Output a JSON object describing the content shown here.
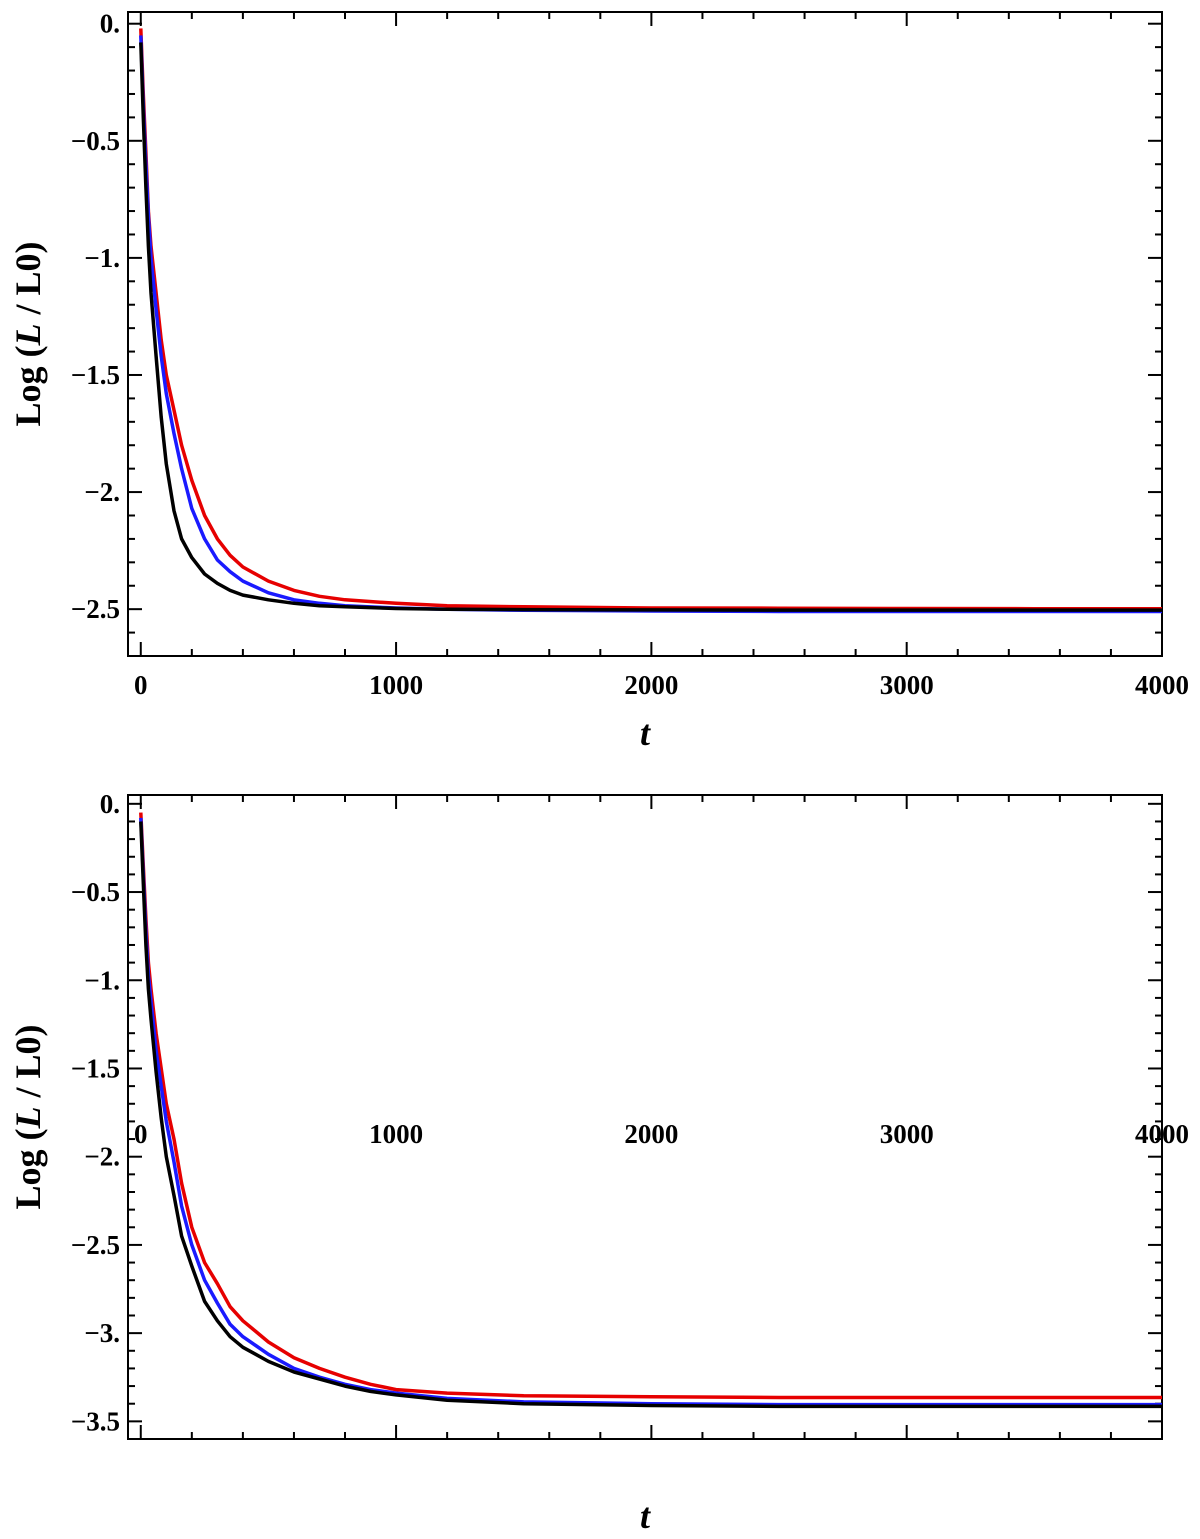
{
  "chart_data": [
    {
      "type": "line",
      "xlabel": "t",
      "ylabel_prefix": "Log (",
      "ylabel_italic": "L",
      "ylabel_suffix": " / L0)",
      "xlim": [
        -50,
        4000
      ],
      "ylim": [
        -2.7,
        0.05
      ],
      "x_ticks": [
        0,
        1000,
        2000,
        3000,
        4000
      ],
      "x_tick_labels": [
        "0",
        "1000",
        "2000",
        "3000",
        "4000"
      ],
      "y_ticks": [
        0,
        -0.5,
        -1,
        -1.5,
        -2,
        -2.5
      ],
      "y_tick_labels": [
        "0.",
        "−0.5",
        "−1.",
        "−1.5",
        "−2.",
        "−2.5"
      ],
      "grid": false,
      "legend": "none",
      "series": [
        {
          "color": "#e60000",
          "x": [
            0,
            10,
            20,
            30,
            40,
            60,
            80,
            100,
            130,
            160,
            200,
            250,
            300,
            350,
            400,
            500,
            600,
            700,
            800,
            1000,
            1200,
            1500,
            2000,
            2500,
            3000,
            3500,
            4000
          ],
          "y": [
            -0.02,
            -0.3,
            -0.55,
            -0.8,
            -0.95,
            -1.15,
            -1.35,
            -1.5,
            -1.65,
            -1.8,
            -1.95,
            -2.1,
            -2.2,
            -2.27,
            -2.32,
            -2.38,
            -2.42,
            -2.445,
            -2.46,
            -2.475,
            -2.485,
            -2.49,
            -2.495,
            -2.496,
            -2.497,
            -2.498,
            -2.498
          ]
        },
        {
          "color": "#1a1aff",
          "x": [
            0,
            10,
            20,
            30,
            40,
            60,
            80,
            100,
            130,
            160,
            200,
            250,
            300,
            350,
            400,
            500,
            600,
            700,
            800,
            1000,
            1200,
            1500,
            2000,
            2500,
            3000,
            3500,
            4000
          ],
          "y": [
            -0.05,
            -0.35,
            -0.6,
            -0.82,
            -1.0,
            -1.22,
            -1.42,
            -1.58,
            -1.75,
            -1.9,
            -2.07,
            -2.2,
            -2.29,
            -2.34,
            -2.38,
            -2.43,
            -2.46,
            -2.475,
            -2.485,
            -2.495,
            -2.5,
            -2.505,
            -2.508,
            -2.51,
            -2.51,
            -2.51,
            -2.51
          ]
        },
        {
          "color": "#000000",
          "x": [
            0,
            10,
            20,
            30,
            40,
            60,
            80,
            100,
            130,
            160,
            200,
            250,
            300,
            350,
            400,
            500,
            600,
            700,
            800,
            1000,
            1200,
            1500,
            2000,
            2500,
            3000,
            3500,
            4000
          ],
          "y": [
            -0.08,
            -0.4,
            -0.7,
            -0.95,
            -1.15,
            -1.42,
            -1.68,
            -1.88,
            -2.08,
            -2.2,
            -2.28,
            -2.35,
            -2.39,
            -2.42,
            -2.44,
            -2.46,
            -2.475,
            -2.485,
            -2.49,
            -2.497,
            -2.5,
            -2.502,
            -2.503,
            -2.504,
            -2.504,
            -2.504,
            -2.504
          ]
        }
      ]
    },
    {
      "type": "line",
      "xlabel": "t",
      "ylabel_prefix": "Log (",
      "ylabel_italic": "L",
      "ylabel_suffix": " / L0)",
      "xlim": [
        -50,
        4000
      ],
      "ylim": [
        -3.6,
        0.05
      ],
      "x_ticks": [
        0,
        1000,
        2000,
        3000,
        4000
      ],
      "x_tick_labels": [
        "0",
        "1000",
        "2000",
        "3000",
        "4000"
      ],
      "y_ticks": [
        0,
        -0.5,
        -1,
        -1.5,
        -2,
        -2.5,
        -3,
        -3.5
      ],
      "y_tick_labels": [
        "0.",
        "−0.5",
        "−1.",
        "−1.5",
        "−2.",
        "−2.5",
        "−3.",
        "−3.5"
      ],
      "grid": false,
      "legend": "none",
      "series": [
        {
          "color": "#e60000",
          "x": [
            0,
            10,
            20,
            30,
            40,
            60,
            80,
            100,
            130,
            160,
            200,
            250,
            300,
            350,
            400,
            450,
            500,
            600,
            700,
            800,
            900,
            1000,
            1200,
            1500,
            2000,
            2500,
            3000,
            3500,
            4000
          ],
          "y": [
            -0.05,
            -0.35,
            -0.65,
            -0.9,
            -1.05,
            -1.3,
            -1.5,
            -1.7,
            -1.9,
            -2.15,
            -2.4,
            -2.6,
            -2.72,
            -2.85,
            -2.93,
            -2.99,
            -3.05,
            -3.14,
            -3.2,
            -3.25,
            -3.29,
            -3.32,
            -3.34,
            -3.355,
            -3.36,
            -3.365,
            -3.365,
            -3.365,
            -3.365
          ]
        },
        {
          "color": "#1a1aff",
          "x": [
            0,
            10,
            20,
            30,
            40,
            60,
            80,
            100,
            130,
            160,
            200,
            250,
            300,
            350,
            400,
            450,
            500,
            600,
            700,
            800,
            900,
            1000,
            1200,
            1500,
            2000,
            2500,
            3000,
            3500,
            4000
          ],
          "y": [
            -0.08,
            -0.4,
            -0.72,
            -0.97,
            -1.12,
            -1.4,
            -1.6,
            -1.8,
            -2.03,
            -2.28,
            -2.5,
            -2.7,
            -2.83,
            -2.95,
            -3.02,
            -3.07,
            -3.12,
            -3.2,
            -3.25,
            -3.29,
            -3.32,
            -3.34,
            -3.37,
            -3.39,
            -3.4,
            -3.405,
            -3.405,
            -3.405,
            -3.405
          ]
        },
        {
          "color": "#000000",
          "x": [
            0,
            10,
            20,
            30,
            40,
            60,
            80,
            100,
            130,
            160,
            200,
            250,
            300,
            350,
            400,
            450,
            500,
            600,
            700,
            800,
            900,
            1000,
            1200,
            1500,
            2000,
            2500,
            3000,
            3500,
            4000
          ],
          "y": [
            -0.1,
            -0.45,
            -0.8,
            -1.05,
            -1.22,
            -1.52,
            -1.78,
            -2.0,
            -2.22,
            -2.45,
            -2.62,
            -2.82,
            -2.93,
            -3.02,
            -3.08,
            -3.12,
            -3.16,
            -3.22,
            -3.26,
            -3.3,
            -3.33,
            -3.35,
            -3.38,
            -3.4,
            -3.41,
            -3.415,
            -3.415,
            -3.415,
            -3.415
          ]
        }
      ]
    }
  ]
}
